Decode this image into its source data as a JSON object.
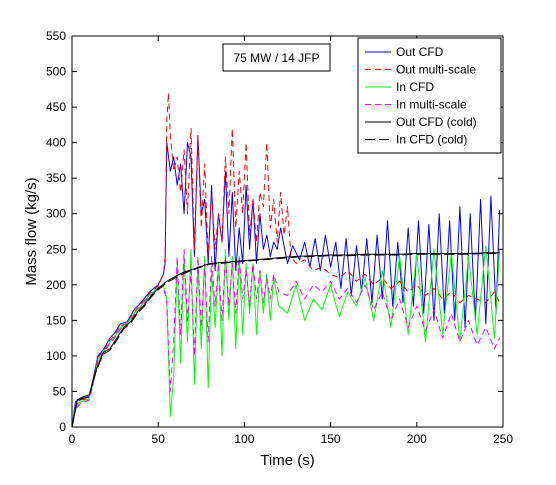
{
  "chart_data": {
    "type": "line",
    "title": "",
    "xlabel": "Time (s)",
    "ylabel": "Mass flow (kg/s)",
    "xlim": [
      0,
      250
    ],
    "ylim": [
      0,
      550
    ],
    "xticks": [
      0,
      50,
      100,
      150,
      200,
      250
    ],
    "yticks": [
      0,
      50,
      100,
      150,
      200,
      250,
      300,
      350,
      400,
      450,
      500,
      550
    ],
    "grid": false,
    "legend_position": "top-right",
    "annotation": "75 MW / 14 JFP",
    "colors": {
      "out_cfd": "#0000ff",
      "out_multiscale": "#ff0000",
      "in_cfd": "#00ff00",
      "in_multiscale": "#ff00ff",
      "out_cfd_cold": "#000000",
      "in_cfd_cold": "#000000"
    },
    "series": [
      {
        "name": "Out CFD",
        "key": "out_cfd",
        "dash": "solid",
        "x": [
          0,
          2,
          5,
          10,
          12,
          15,
          18,
          22,
          25,
          28,
          32,
          36,
          40,
          45,
          50,
          53,
          54,
          55,
          57,
          59,
          61,
          63,
          65,
          67,
          69,
          71,
          73,
          75,
          77,
          79,
          81,
          83,
          85,
          87,
          89,
          91,
          93,
          95,
          97,
          99,
          101,
          103,
          105,
          107,
          109,
          111,
          113,
          115,
          117,
          119,
          121,
          125,
          128,
          132,
          135,
          138,
          141,
          144,
          147,
          150,
          153,
          156,
          159,
          162,
          165,
          168,
          171,
          174,
          177,
          180,
          183,
          186,
          189,
          192,
          195,
          198,
          201,
          204,
          207,
          210,
          213,
          216,
          219,
          222,
          225,
          228,
          231,
          234,
          237,
          240,
          243,
          246,
          248
        ],
        "y": [
          0,
          35,
          40,
          42,
          65,
          100,
          108,
          125,
          133,
          145,
          148,
          165,
          175,
          190,
          200,
          215,
          230,
          400,
          360,
          380,
          340,
          370,
          300,
          400,
          380,
          240,
          410,
          300,
          320,
          230,
          340,
          220,
          300,
          260,
          360,
          240,
          330,
          220,
          280,
          230,
          340,
          250,
          320,
          230,
          300,
          250,
          270,
          240,
          260,
          250,
          280,
          230,
          255,
          235,
          260,
          225,
          265,
          220,
          270,
          225,
          260,
          195,
          265,
          185,
          255,
          190,
          265,
          175,
          270,
          180,
          290,
          170,
          260,
          175,
          280,
          170,
          290,
          160,
          285,
          150,
          300,
          160,
          290,
          150,
          310,
          140,
          300,
          150,
          320,
          145,
          325,
          160,
          305
        ]
      },
      {
        "name": "Out multi-scale",
        "key": "out_multiscale",
        "dash": "dash",
        "x": [
          0,
          2,
          5,
          10,
          12,
          15,
          18,
          22,
          25,
          28,
          32,
          36,
          40,
          45,
          50,
          53,
          54,
          55,
          56,
          57,
          59,
          61,
          63,
          65,
          67,
          69,
          71,
          73,
          75,
          77,
          79,
          81,
          83,
          85,
          87,
          89,
          91,
          93,
          95,
          97,
          99,
          101,
          103,
          105,
          107,
          109,
          111,
          113,
          115,
          117,
          119,
          121,
          123,
          125,
          127,
          130,
          135,
          140,
          145,
          150,
          155,
          160,
          165,
          170,
          175,
          180,
          185,
          190,
          195,
          200,
          205,
          210,
          215,
          220,
          225,
          230,
          235,
          240,
          245,
          248
        ],
        "y": [
          0,
          30,
          38,
          40,
          62,
          98,
          106,
          122,
          130,
          142,
          146,
          162,
          172,
          188,
          198,
          215,
          240,
          430,
          470,
          410,
          360,
          380,
          330,
          390,
          300,
          420,
          250,
          410,
          280,
          370,
          240,
          330,
          250,
          300,
          260,
          380,
          300,
          420,
          280,
          360,
          300,
          400,
          270,
          320,
          260,
          330,
          310,
          400,
          280,
          320,
          260,
          330,
          270,
          310,
          240,
          230,
          235,
          220,
          225,
          215,
          210,
          220,
          205,
          215,
          200,
          210,
          195,
          205,
          190,
          200,
          185,
          195,
          180,
          190,
          175,
          185,
          180,
          175,
          190,
          175
        ]
      },
      {
        "name": "In CFD",
        "key": "in_cfd",
        "dash": "solid",
        "x": [
          0,
          2,
          5,
          10,
          12,
          15,
          18,
          22,
          25,
          28,
          32,
          36,
          40,
          45,
          50,
          53,
          55,
          57,
          59,
          61,
          63,
          65,
          67,
          69,
          71,
          73,
          75,
          77,
          79,
          81,
          83,
          85,
          87,
          89,
          91,
          93,
          95,
          97,
          99,
          101,
          103,
          105,
          107,
          109,
          111,
          113,
          115,
          117,
          120,
          125,
          130,
          135,
          140,
          145,
          150,
          155,
          160,
          165,
          170,
          175,
          180,
          185,
          190,
          195,
          200,
          205,
          210,
          215,
          220,
          225,
          230,
          235,
          240,
          245,
          248
        ],
        "y": [
          0,
          28,
          35,
          40,
          60,
          95,
          104,
          120,
          128,
          140,
          145,
          160,
          170,
          186,
          196,
          200,
          180,
          15,
          70,
          230,
          90,
          240,
          120,
          250,
          60,
          230,
          110,
          240,
          55,
          220,
          140,
          230,
          100,
          250,
          150,
          240,
          110,
          240,
          130,
          230,
          160,
          230,
          130,
          220,
          160,
          215,
          150,
          210,
          170,
          160,
          200,
          150,
          180,
          165,
          200,
          155,
          190,
          170,
          210,
          150,
          220,
          140,
          240,
          130,
          245,
          120,
          250,
          130,
          245,
          120,
          240,
          130,
          255,
          125,
          250
        ]
      },
      {
        "name": "In multi-scale",
        "key": "in_multiscale",
        "dash": "dash",
        "x": [
          0,
          2,
          5,
          10,
          12,
          15,
          18,
          22,
          25,
          28,
          32,
          36,
          40,
          45,
          50,
          53,
          55,
          57,
          59,
          61,
          63,
          65,
          67,
          69,
          71,
          73,
          75,
          77,
          79,
          81,
          83,
          85,
          87,
          89,
          91,
          93,
          95,
          97,
          99,
          101,
          103,
          105,
          107,
          109,
          111,
          113,
          115,
          117,
          120,
          125,
          130,
          135,
          140,
          145,
          150,
          155,
          160,
          165,
          170,
          175,
          180,
          185,
          190,
          195,
          200,
          205,
          210,
          215,
          220,
          225,
          230,
          235,
          240,
          245,
          248
        ],
        "y": [
          0,
          25,
          33,
          38,
          58,
          93,
          102,
          118,
          126,
          138,
          143,
          158,
          168,
          184,
          194,
          198,
          175,
          50,
          120,
          240,
          130,
          250,
          150,
          220,
          100,
          240,
          140,
          230,
          120,
          240,
          170,
          230,
          150,
          240,
          170,
          230,
          160,
          240,
          180,
          220,
          170,
          230,
          180,
          220,
          175,
          210,
          180,
          215,
          190,
          185,
          205,
          180,
          200,
          190,
          205,
          180,
          195,
          175,
          200,
          165,
          190,
          150,
          180,
          140,
          170,
          135,
          165,
          125,
          160,
          120,
          150,
          115,
          140,
          110,
          125
        ]
      },
      {
        "name": "Out CFD (cold)",
        "key": "out_cfd_cold",
        "dash": "solid",
        "x": [
          0,
          3,
          6,
          10,
          14,
          18,
          22,
          26,
          30,
          34,
          38,
          42,
          46,
          50,
          55,
          60,
          65,
          70,
          75,
          80,
          90,
          100,
          110,
          120,
          130,
          140,
          150,
          160,
          170,
          180,
          190,
          200,
          210,
          220,
          230,
          240,
          248
        ],
        "y": [
          0,
          38,
          42,
          45,
          80,
          105,
          110,
          125,
          140,
          148,
          162,
          172,
          185,
          195,
          205,
          212,
          218,
          222,
          226,
          230,
          232,
          234,
          236,
          238,
          240,
          241,
          242,
          242,
          243,
          243,
          243,
          244,
          244,
          244,
          244,
          245,
          245
        ]
      },
      {
        "name": "In CFD (cold)",
        "key": "in_cfd_cold",
        "dash": "longdash",
        "x": [
          0,
          3,
          6,
          10,
          14,
          18,
          22,
          26,
          30,
          34,
          38,
          42,
          46,
          50,
          55,
          60,
          65,
          70,
          75,
          80,
          90,
          100,
          110,
          120,
          130,
          140,
          150,
          160,
          170,
          180,
          190,
          200,
          210,
          220,
          230,
          240,
          248
        ],
        "y": [
          0,
          35,
          40,
          43,
          78,
          102,
          108,
          122,
          138,
          146,
          160,
          170,
          183,
          193,
          203,
          210,
          216,
          221,
          225,
          229,
          231,
          233,
          235,
          237,
          239,
          240,
          241,
          241,
          242,
          242,
          242,
          243,
          243,
          243,
          243,
          244,
          244
        ]
      }
    ]
  }
}
